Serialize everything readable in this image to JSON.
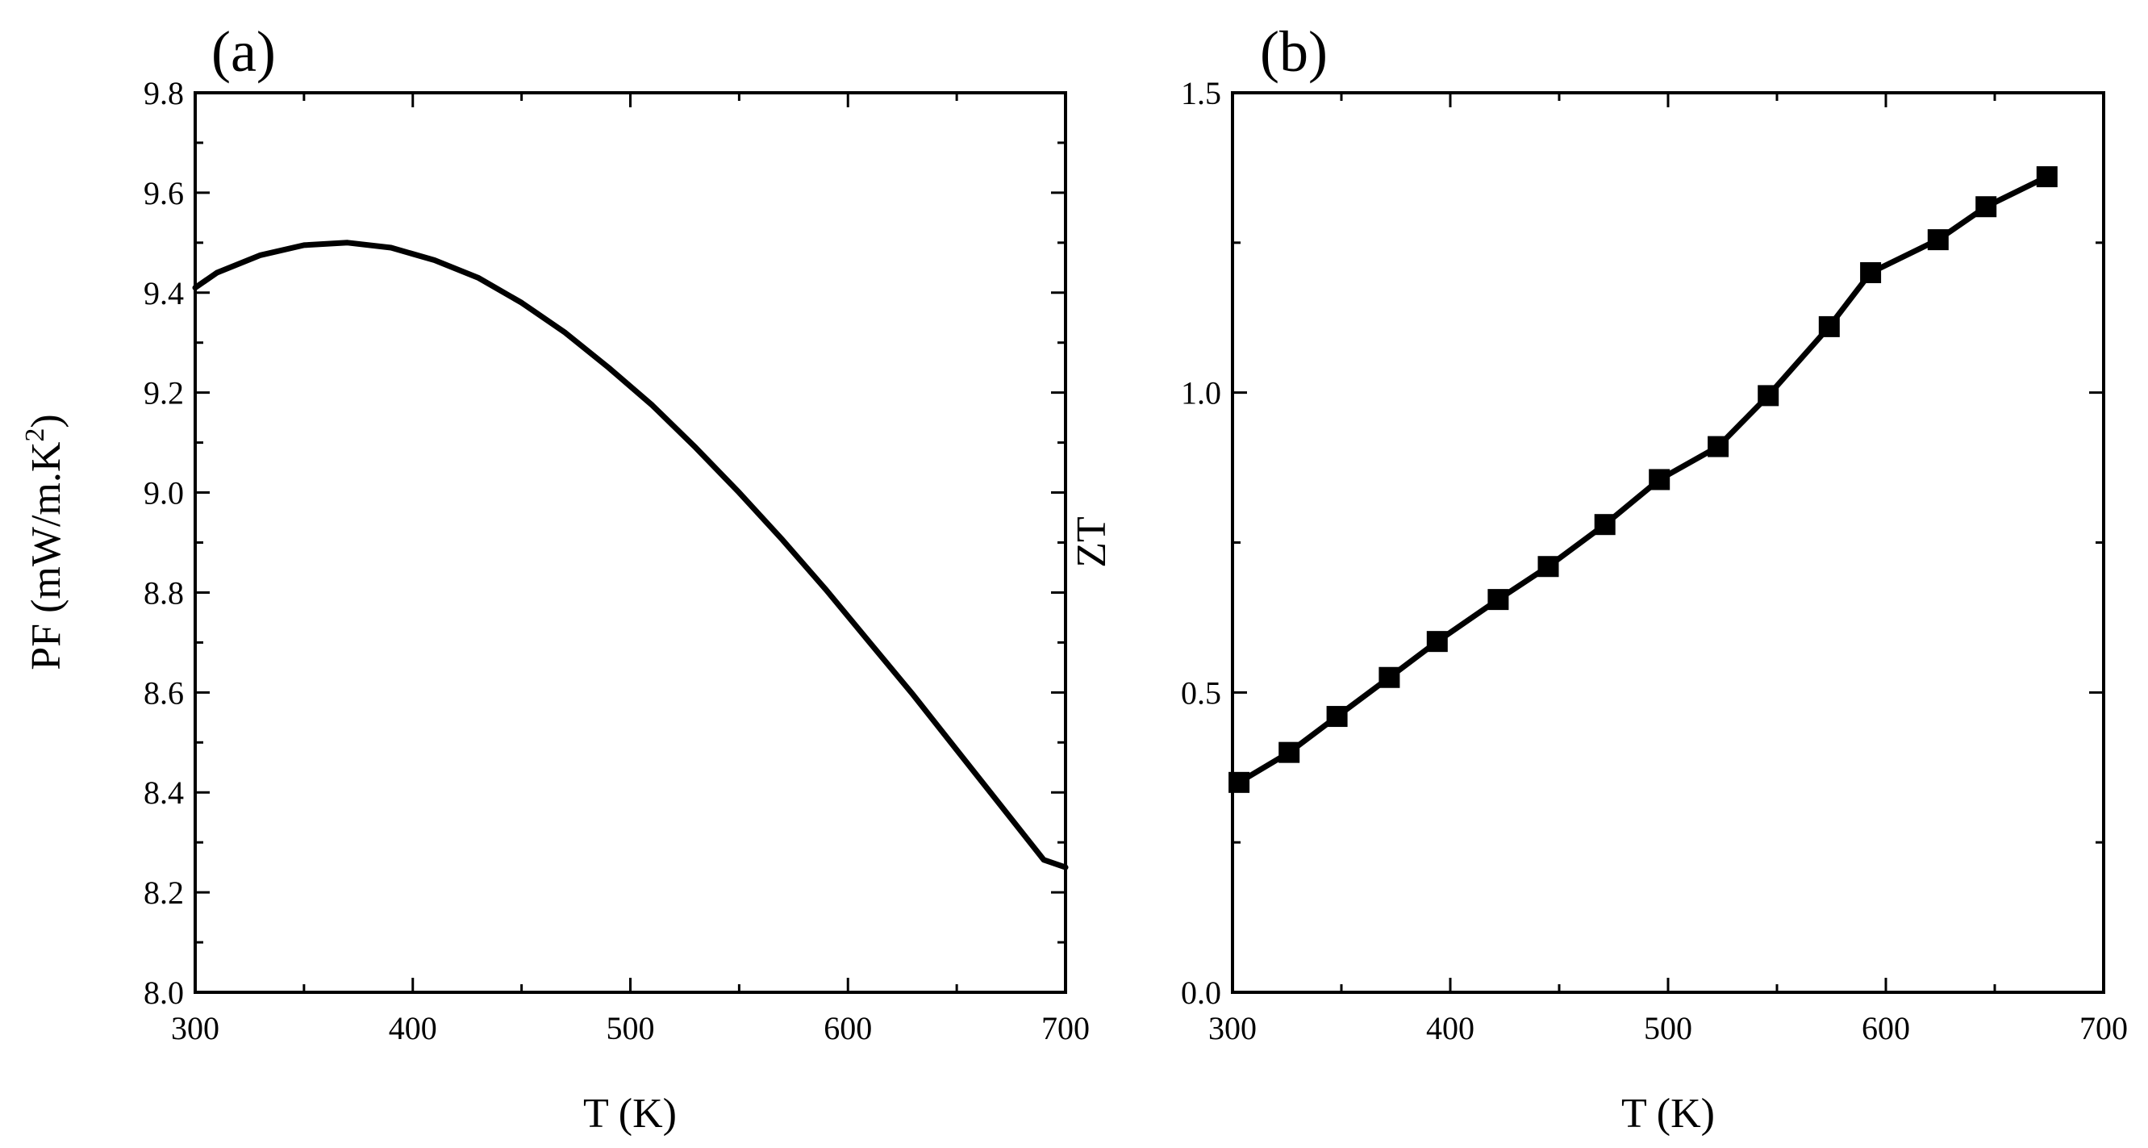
{
  "chart_data": [
    {
      "panel": "(a)",
      "type": "line",
      "xlabel": "T (K)",
      "ylabel_main": "PF (mW/m.K",
      "ylabel_sup": "2",
      "ylabel_close": ")",
      "xlim": [
        300,
        700
      ],
      "ylim": [
        8.0,
        9.8
      ],
      "xticks": [
        300,
        400,
        500,
        600,
        700
      ],
      "xtick_labels": [
        "300",
        "400",
        "500",
        "600",
        "700"
      ],
      "yticks": [
        8.0,
        8.2,
        8.4,
        8.6,
        8.8,
        9.0,
        9.2,
        9.4,
        9.6,
        9.8
      ],
      "ytick_labels": [
        "8.0",
        "8.2",
        "8.4",
        "8.6",
        "8.8",
        "9.0",
        "9.2",
        "9.4",
        "9.6",
        "9.8"
      ],
      "grid": false,
      "x": [
        300,
        310,
        330,
        350,
        370,
        390,
        410,
        430,
        450,
        470,
        490,
        510,
        530,
        550,
        570,
        590,
        610,
        630,
        650,
        670,
        690,
        700
      ],
      "y": [
        9.41,
        9.44,
        9.475,
        9.495,
        9.5,
        9.49,
        9.465,
        9.43,
        9.38,
        9.32,
        9.25,
        9.175,
        9.09,
        9.0,
        8.905,
        8.805,
        8.7,
        8.595,
        8.485,
        8.375,
        8.265,
        8.25
      ]
    },
    {
      "panel": "(b)",
      "type": "line",
      "markers": "square",
      "xlabel": "T (K)",
      "ylabel": "ZT",
      "xlim": [
        300,
        700
      ],
      "ylim": [
        0.0,
        1.5
      ],
      "xticks": [
        300,
        400,
        500,
        600,
        700
      ],
      "xtick_labels": [
        "300",
        "400",
        "500",
        "600",
        "700"
      ],
      "yticks": [
        0.0,
        0.5,
        1.0,
        1.5
      ],
      "ytick_labels": [
        "0.0",
        "0.5",
        "1.0",
        "1.5"
      ],
      "grid": false,
      "x": [
        303,
        326,
        348,
        372,
        394,
        422,
        445,
        471,
        496,
        523,
        546,
        574,
        593,
        624,
        646,
        674
      ],
      "y": [
        0.35,
        0.4,
        0.46,
        0.525,
        0.585,
        0.655,
        0.71,
        0.78,
        0.855,
        0.91,
        0.995,
        1.11,
        1.2,
        1.255,
        1.31,
        1.36
      ]
    }
  ]
}
